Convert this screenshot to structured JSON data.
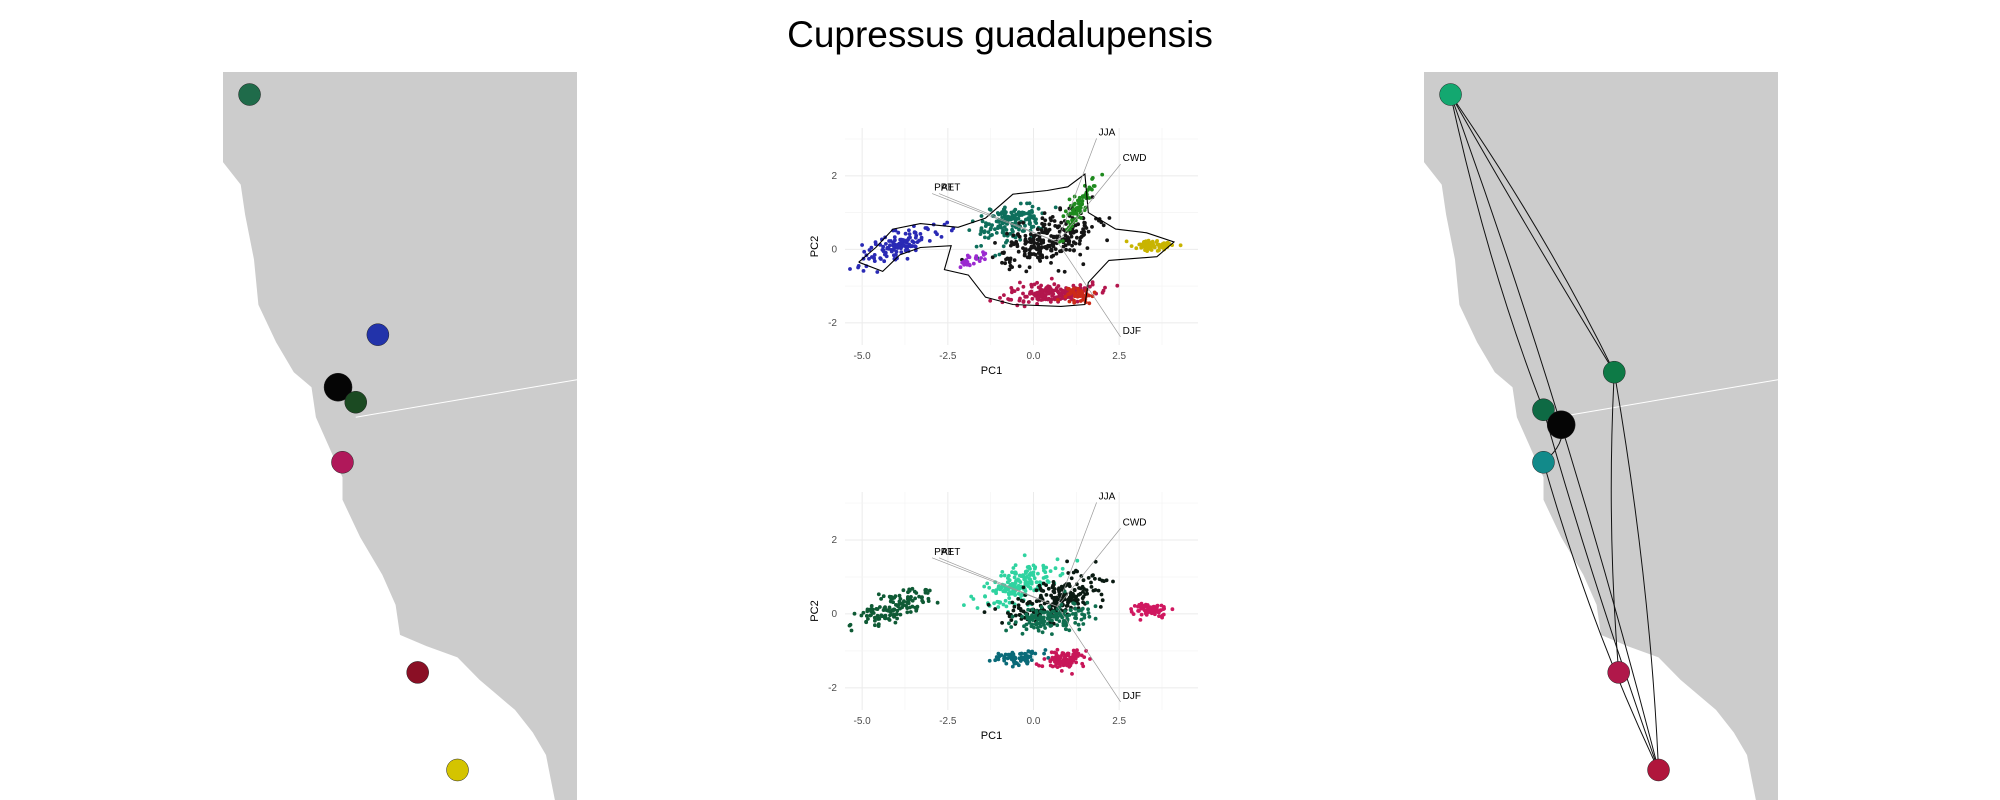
{
  "title": "Cupressus guadalupensis",
  "chart_data": [
    {
      "type": "map",
      "panel": "left-map",
      "title": "",
      "points": [
        {
          "lon": -124.0,
          "lat": 41.8,
          "color": "#1f6b4a"
        },
        {
          "lon": -121.1,
          "lat": 38.6,
          "color": "#2233aa"
        },
        {
          "lon": -122.0,
          "lat": 37.9,
          "color": "#050505"
        },
        {
          "lon": -121.6,
          "lat": 37.7,
          "color": "#1b4a22"
        },
        {
          "lon": -121.9,
          "lat": 36.9,
          "color": "#b0185a"
        },
        {
          "lon": -120.2,
          "lat": 34.1,
          "color": "#8a0f25"
        },
        {
          "lon": -119.3,
          "lat": 32.8,
          "color": "#d4c400"
        }
      ]
    },
    {
      "type": "scatter",
      "panel": "pca-top",
      "xlabel": "PC1",
      "ylabel": "PC2",
      "xticks": [
        "-5.0",
        "-2.5",
        "0.0",
        "2.5"
      ],
      "yticks": [
        "2",
        "0",
        "-2"
      ],
      "xlim": [
        -5.5,
        4.8
      ],
      "ylim": [
        -2.6,
        3.3
      ],
      "loadings": [
        {
          "label": "JJA",
          "x": 1.9,
          "y": 3.1
        },
        {
          "label": "CWD",
          "x": 2.6,
          "y": 2.4
        },
        {
          "label": "PPT",
          "x": -2.9,
          "y": 1.6
        },
        {
          "label": "AET",
          "x": -2.7,
          "y": 1.6
        },
        {
          "label": "DJF",
          "x": 2.6,
          "y": -2.3
        }
      ],
      "clusters": [
        {
          "cx": -3.9,
          "cy": 0.15,
          "sx": 1.0,
          "sy": 0.35,
          "n": 130,
          "slope": 0.35,
          "color": "#2a2ab5"
        },
        {
          "cx": -0.7,
          "cy": 0.7,
          "sx": 0.9,
          "sy": 0.45,
          "n": 160,
          "slope": 0.25,
          "color": "#0e6f5c"
        },
        {
          "cx": 0.4,
          "cy": 0.25,
          "sx": 1.3,
          "sy": 0.55,
          "n": 260,
          "slope": 0.3,
          "color": "#151515"
        },
        {
          "cx": 1.3,
          "cy": 1.2,
          "sx": 0.4,
          "sy": 0.4,
          "n": 70,
          "slope": 1.2,
          "color": "#1e8a1e"
        },
        {
          "cx": 0.5,
          "cy": -1.2,
          "sx": 1.2,
          "sy": 0.25,
          "n": 170,
          "slope": 0.05,
          "color": "#b3164d"
        },
        {
          "cx": 1.3,
          "cy": -1.25,
          "sx": 0.4,
          "sy": 0.2,
          "n": 50,
          "slope": 0.0,
          "color": "#cc2a18"
        },
        {
          "cx": 3.5,
          "cy": 0.1,
          "sx": 0.5,
          "sy": 0.15,
          "n": 70,
          "slope": 0.0,
          "color": "#c8b400"
        },
        {
          "cx": -1.8,
          "cy": -0.3,
          "sx": 0.4,
          "sy": 0.15,
          "n": 25,
          "slope": 0.3,
          "color": "#9b2ad0"
        }
      ]
    },
    {
      "type": "scatter",
      "panel": "pca-bottom",
      "xlabel": "PC1",
      "ylabel": "PC2",
      "xticks": [
        "-5.0",
        "-2.5",
        "0.0",
        "2.5"
      ],
      "yticks": [
        "2",
        "0",
        "-2"
      ],
      "xlim": [
        -5.5,
        4.8
      ],
      "ylim": [
        -2.6,
        3.3
      ],
      "loadings": [
        {
          "label": "JJA",
          "x": 1.9,
          "y": 3.1
        },
        {
          "label": "CWD",
          "x": 2.6,
          "y": 2.4
        },
        {
          "label": "PPT",
          "x": -2.9,
          "y": 1.6
        },
        {
          "label": "AET",
          "x": -2.7,
          "y": 1.6
        },
        {
          "label": "DJF",
          "x": 2.6,
          "y": -2.3
        }
      ],
      "clusters": [
        {
          "cx": -4.0,
          "cy": 0.2,
          "sx": 1.0,
          "sy": 0.35,
          "n": 130,
          "slope": 0.35,
          "color": "#0f5a35"
        },
        {
          "cx": -0.5,
          "cy": 0.8,
          "sx": 1.0,
          "sy": 0.45,
          "n": 180,
          "slope": 0.3,
          "color": "#2fd3a0"
        },
        {
          "cx": 0.6,
          "cy": 0.4,
          "sx": 1.2,
          "sy": 0.5,
          "n": 220,
          "slope": 0.25,
          "color": "#0a1a12"
        },
        {
          "cx": 0.5,
          "cy": -0.1,
          "sx": 1.1,
          "sy": 0.3,
          "n": 140,
          "slope": 0.1,
          "color": "#0f6e4f"
        },
        {
          "cx": -0.6,
          "cy": -1.2,
          "sx": 0.7,
          "sy": 0.2,
          "n": 70,
          "slope": 0.1,
          "color": "#0a6a78"
        },
        {
          "cx": 0.9,
          "cy": -1.25,
          "sx": 0.6,
          "sy": 0.25,
          "n": 100,
          "slope": 0.05,
          "color": "#c81658"
        },
        {
          "cx": 3.4,
          "cy": 0.1,
          "sx": 0.5,
          "sy": 0.15,
          "n": 70,
          "slope": 0.0,
          "color": "#d01860"
        }
      ]
    },
    {
      "type": "map",
      "panel": "right-map",
      "title": "",
      "points": [
        {
          "lon": -124.0,
          "lat": 41.8,
          "color": "#13a870"
        },
        {
          "lon": -120.3,
          "lat": 38.1,
          "color": "#0d7a46"
        },
        {
          "lon": -121.9,
          "lat": 37.6,
          "color": "#0e6a44"
        },
        {
          "lon": -121.5,
          "lat": 37.4,
          "color": "#050505"
        },
        {
          "lon": -121.9,
          "lat": 36.9,
          "color": "#128a8a"
        },
        {
          "lon": -120.2,
          "lat": 34.1,
          "color": "#b0184a"
        },
        {
          "lon": -119.3,
          "lat": 32.8,
          "color": "#b0163c"
        }
      ]
    }
  ]
}
